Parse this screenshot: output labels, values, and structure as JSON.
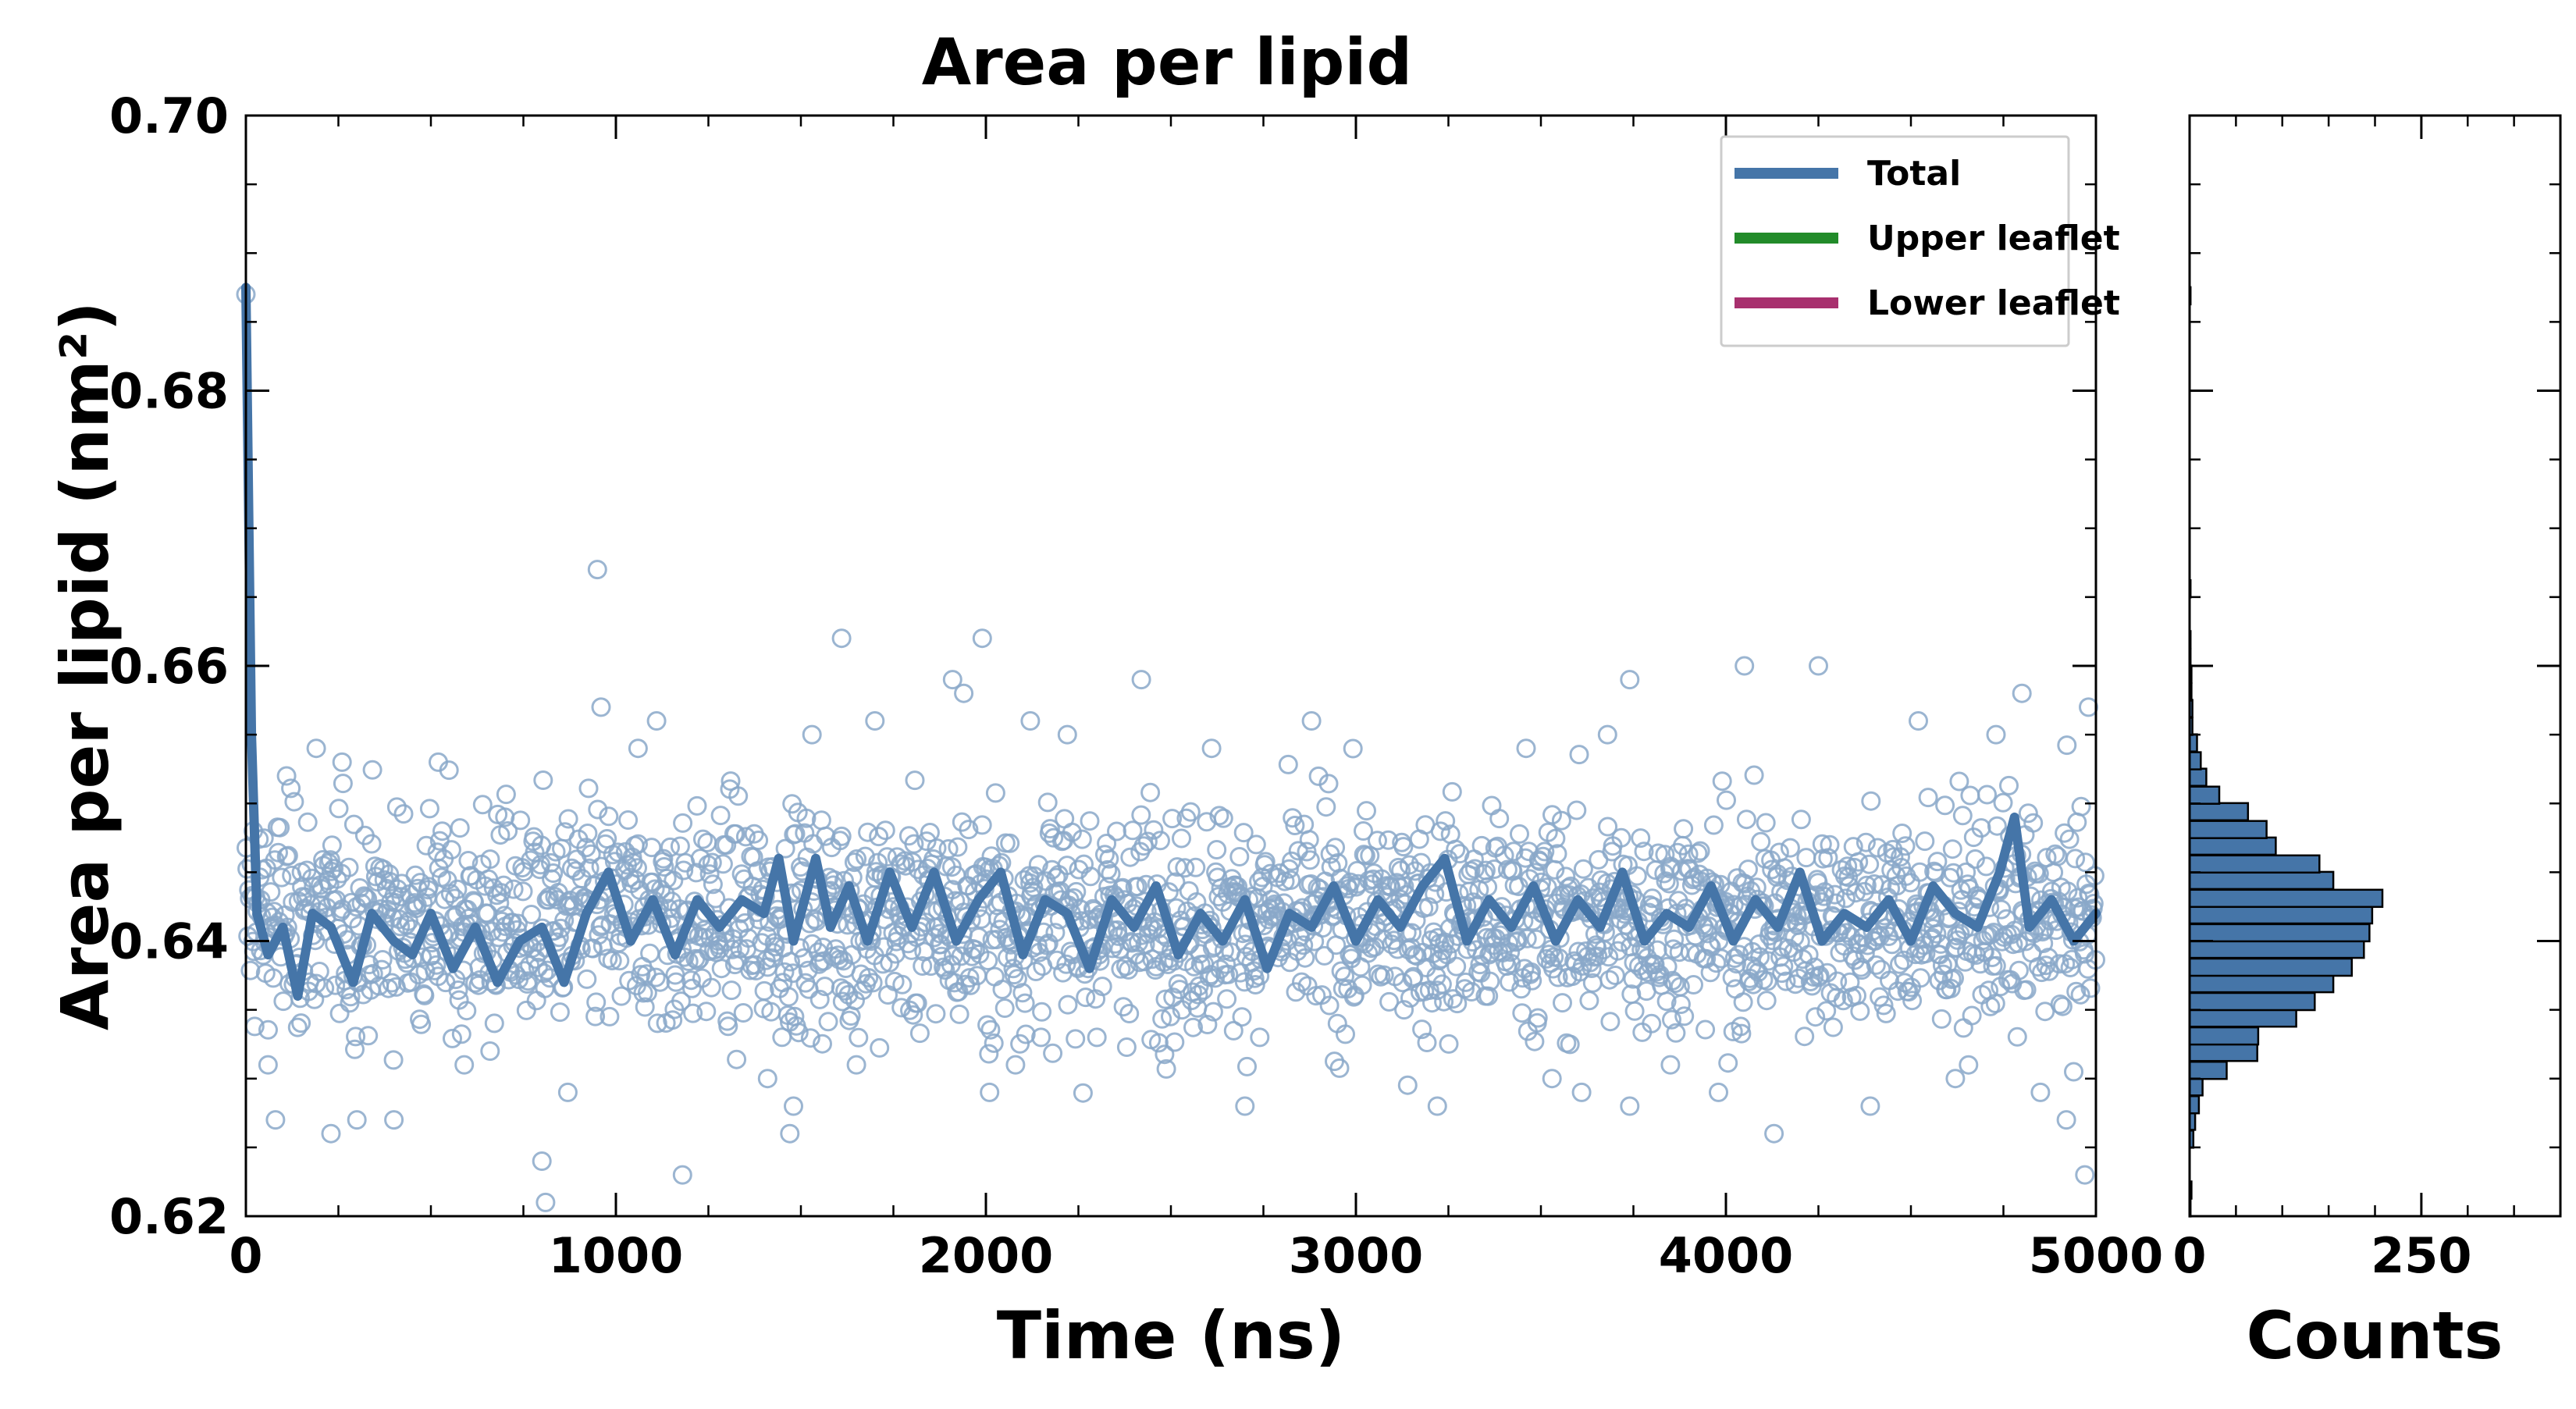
{
  "colors": {
    "total": "#4575a8",
    "total_points": "#8aa8c9",
    "upper": "#228b2a",
    "lower": "#a8306e",
    "hist_fill": "#4575a8",
    "hist_edge": "#000000"
  },
  "chart_data": [
    {
      "type": "line",
      "title": "Area per lipid",
      "xlabel": "Time (ns)",
      "ylabel": "Area per lipid (nm²)",
      "xlim": [
        0,
        5000
      ],
      "ylim": [
        0.62,
        0.7
      ],
      "x_ticks": [
        0,
        1000,
        2000,
        3000,
        4000,
        5000
      ],
      "x_tick_labels": [
        "0",
        "1000",
        "2000",
        "3000",
        "4000",
        "5000"
      ],
      "y_ticks": [
        0.62,
        0.64,
        0.66,
        0.68,
        0.7
      ],
      "y_tick_labels": [
        "0.62",
        "0.64",
        "0.66",
        "0.68",
        "0.70"
      ],
      "grid": false,
      "legend_position": "top-right",
      "legend": [
        "Total",
        "Upper leaflet",
        "Lower leaflet"
      ],
      "series": [
        {
          "name": "Total",
          "style": "scatter-open-circles",
          "approx_mean": 0.6415,
          "approx_sd": 0.0055,
          "initial_value": 0.687,
          "points": [
            [
              0,
              0.687
            ],
            [
              20,
              0.648
            ],
            [
              40,
              0.643
            ],
            [
              60,
              0.631
            ],
            [
              80,
              0.627
            ],
            [
              110,
              0.652
            ],
            [
              150,
              0.645
            ],
            [
              190,
              0.654
            ],
            [
              230,
              0.626
            ],
            [
              260,
              0.653
            ],
            [
              300,
              0.627
            ],
            [
              400,
              0.627
            ],
            [
              520,
              0.653
            ],
            [
              590,
              0.631
            ],
            [
              660,
              0.632
            ],
            [
              700,
              0.649
            ],
            [
              800,
              0.624
            ],
            [
              810,
              0.621
            ],
            [
              870,
              0.629
            ],
            [
              950,
              0.667
            ],
            [
              960,
              0.657
            ],
            [
              1060,
              0.654
            ],
            [
              1110,
              0.656
            ],
            [
              1180,
              0.623
            ],
            [
              1410,
              0.63
            ],
            [
              1470,
              0.626
            ],
            [
              1480,
              0.628
            ],
            [
              1530,
              0.655
            ],
            [
              1610,
              0.662
            ],
            [
              1650,
              0.631
            ],
            [
              1700,
              0.656
            ],
            [
              1910,
              0.659
            ],
            [
              1940,
              0.658
            ],
            [
              1990,
              0.662
            ],
            [
              2010,
              0.629
            ],
            [
              2080,
              0.631
            ],
            [
              2120,
              0.656
            ],
            [
              2220,
              0.655
            ],
            [
              2300,
              0.633
            ],
            [
              2420,
              0.659
            ],
            [
              2530,
              0.635
            ],
            [
              2610,
              0.654
            ],
            [
              2700,
              0.628
            ],
            [
              2740,
              0.633
            ],
            [
              2880,
              0.656
            ],
            [
              2950,
              0.634
            ],
            [
              3020,
              0.648
            ],
            [
              3130,
              0.635
            ],
            [
              3220,
              0.628
            ],
            [
              3350,
              0.636
            ],
            [
              3460,
              0.654
            ],
            [
              3530,
              0.63
            ],
            [
              3610,
              0.629
            ],
            [
              3680,
              0.655
            ],
            [
              3740,
              0.628
            ],
            [
              3740,
              0.659
            ],
            [
              3850,
              0.631
            ],
            [
              3980,
              0.629
            ],
            [
              4050,
              0.66
            ],
            [
              4130,
              0.626
            ],
            [
              4250,
              0.66
            ],
            [
              4390,
              0.628
            ],
            [
              4520,
              0.656
            ],
            [
              4620,
              0.63
            ],
            [
              4730,
              0.655
            ],
            [
              4800,
              0.658
            ],
            [
              4850,
              0.629
            ],
            [
              4920,
              0.627
            ],
            [
              4970,
              0.623
            ],
            [
              4980,
              0.657
            ]
          ]
        },
        {
          "name": "Total",
          "style": "line-running-average",
          "points": [
            [
              0,
              0.6875
            ],
            [
              15,
              0.655
            ],
            [
              30,
              0.642
            ],
            [
              60,
              0.639
            ],
            [
              100,
              0.641
            ],
            [
              140,
              0.636
            ],
            [
              180,
              0.642
            ],
            [
              230,
              0.641
            ],
            [
              290,
              0.637
            ],
            [
              340,
              0.642
            ],
            [
              400,
              0.64
            ],
            [
              450,
              0.639
            ],
            [
              500,
              0.642
            ],
            [
              560,
              0.638
            ],
            [
              620,
              0.641
            ],
            [
              680,
              0.637
            ],
            [
              740,
              0.64
            ],
            [
              800,
              0.641
            ],
            [
              860,
              0.637
            ],
            [
              920,
              0.642
            ],
            [
              980,
              0.645
            ],
            [
              1040,
              0.64
            ],
            [
              1100,
              0.643
            ],
            [
              1160,
              0.639
            ],
            [
              1220,
              0.643
            ],
            [
              1280,
              0.641
            ],
            [
              1340,
              0.643
            ],
            [
              1400,
              0.642
            ],
            [
              1440,
              0.646
            ],
            [
              1480,
              0.64
            ],
            [
              1540,
              0.646
            ],
            [
              1580,
              0.641
            ],
            [
              1630,
              0.644
            ],
            [
              1680,
              0.64
            ],
            [
              1740,
              0.645
            ],
            [
              1800,
              0.641
            ],
            [
              1860,
              0.645
            ],
            [
              1920,
              0.64
            ],
            [
              1980,
              0.643
            ],
            [
              2040,
              0.645
            ],
            [
              2100,
              0.639
            ],
            [
              2160,
              0.643
            ],
            [
              2220,
              0.642
            ],
            [
              2280,
              0.638
            ],
            [
              2340,
              0.643
            ],
            [
              2400,
              0.641
            ],
            [
              2460,
              0.644
            ],
            [
              2520,
              0.639
            ],
            [
              2580,
              0.642
            ],
            [
              2640,
              0.64
            ],
            [
              2700,
              0.643
            ],
            [
              2760,
              0.638
            ],
            [
              2820,
              0.642
            ],
            [
              2880,
              0.641
            ],
            [
              2940,
              0.644
            ],
            [
              3000,
              0.64
            ],
            [
              3060,
              0.643
            ],
            [
              3120,
              0.641
            ],
            [
              3180,
              0.644
            ],
            [
              3240,
              0.646
            ],
            [
              3300,
              0.64
            ],
            [
              3360,
              0.643
            ],
            [
              3420,
              0.641
            ],
            [
              3480,
              0.644
            ],
            [
              3540,
              0.64
            ],
            [
              3600,
              0.643
            ],
            [
              3660,
              0.641
            ],
            [
              3720,
              0.645
            ],
            [
              3780,
              0.64
            ],
            [
              3840,
              0.642
            ],
            [
              3900,
              0.641
            ],
            [
              3960,
              0.644
            ],
            [
              4020,
              0.64
            ],
            [
              4080,
              0.643
            ],
            [
              4140,
              0.641
            ],
            [
              4200,
              0.645
            ],
            [
              4260,
              0.64
            ],
            [
              4320,
              0.642
            ],
            [
              4380,
              0.641
            ],
            [
              4440,
              0.643
            ],
            [
              4500,
              0.64
            ],
            [
              4560,
              0.644
            ],
            [
              4620,
              0.642
            ],
            [
              4680,
              0.641
            ],
            [
              4740,
              0.645
            ],
            [
              4780,
              0.649
            ],
            [
              4820,
              0.641
            ],
            [
              4880,
              0.643
            ],
            [
              4940,
              0.64
            ],
            [
              5000,
              0.642
            ]
          ]
        },
        {
          "name": "Upper leaflet",
          "style": "line",
          "points": []
        },
        {
          "name": "Lower leaflet",
          "style": "line",
          "points": []
        }
      ]
    },
    {
      "type": "bar",
      "orientation": "horizontal",
      "title": "",
      "xlabel": "Counts",
      "ylabel": "",
      "xlim": [
        0,
        400
      ],
      "ylim": [
        0.62,
        0.7
      ],
      "x_ticks": [
        0,
        250
      ],
      "x_tick_labels": [
        "0",
        "250"
      ],
      "bin_width": 0.00125,
      "bins": [
        {
          "y": 0.6206,
          "count": 1
        },
        {
          "y": 0.6219,
          "count": 2
        },
        {
          "y": 0.6231,
          "count": 0
        },
        {
          "y": 0.6244,
          "count": 0
        },
        {
          "y": 0.6256,
          "count": 4
        },
        {
          "y": 0.6269,
          "count": 6
        },
        {
          "y": 0.6281,
          "count": 10
        },
        {
          "y": 0.6294,
          "count": 14
        },
        {
          "y": 0.6306,
          "count": 40
        },
        {
          "y": 0.6319,
          "count": 73
        },
        {
          "y": 0.6331,
          "count": 74
        },
        {
          "y": 0.6344,
          "count": 115
        },
        {
          "y": 0.6356,
          "count": 135
        },
        {
          "y": 0.6369,
          "count": 155
        },
        {
          "y": 0.6381,
          "count": 175
        },
        {
          "y": 0.6394,
          "count": 188
        },
        {
          "y": 0.6406,
          "count": 194
        },
        {
          "y": 0.6419,
          "count": 197
        },
        {
          "y": 0.6431,
          "count": 208
        },
        {
          "y": 0.6444,
          "count": 155
        },
        {
          "y": 0.6456,
          "count": 140
        },
        {
          "y": 0.6469,
          "count": 93
        },
        {
          "y": 0.6481,
          "count": 83
        },
        {
          "y": 0.6494,
          "count": 63
        },
        {
          "y": 0.6506,
          "count": 32
        },
        {
          "y": 0.6519,
          "count": 18
        },
        {
          "y": 0.6531,
          "count": 12
        },
        {
          "y": 0.6544,
          "count": 8
        },
        {
          "y": 0.6556,
          "count": 3
        },
        {
          "y": 0.6569,
          "count": 3
        },
        {
          "y": 0.6581,
          "count": 2
        },
        {
          "y": 0.6594,
          "count": 2
        },
        {
          "y": 0.6606,
          "count": 1
        },
        {
          "y": 0.6619,
          "count": 1
        },
        {
          "y": 0.6656,
          "count": 1
        },
        {
          "y": 0.6869,
          "count": 1
        }
      ]
    }
  ]
}
